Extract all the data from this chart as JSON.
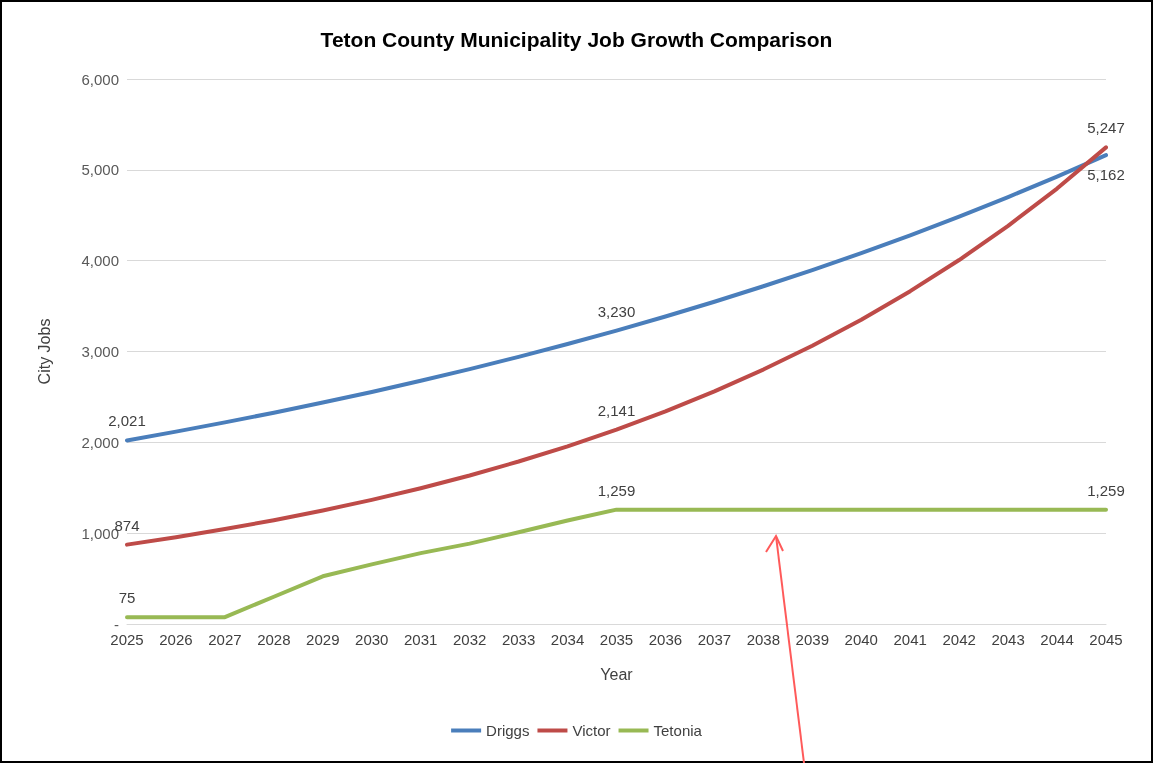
{
  "chart_data": {
    "type": "line",
    "title": "Teton County Municipality Job Growth Comparison",
    "xlabel": "Year",
    "ylabel": "City Jobs",
    "categories": [
      "2025",
      "2026",
      "2027",
      "2028",
      "2029",
      "2030",
      "2031",
      "2032",
      "2033",
      "2034",
      "2035",
      "2036",
      "2037",
      "2038",
      "2039",
      "2040",
      "2041",
      "2042",
      "2043",
      "2044",
      "2045"
    ],
    "series": [
      {
        "name": "Driggs",
        "color": "#4a7ebb",
        "values": [
          2021,
          2118,
          2220,
          2326,
          2438,
          2555,
          2678,
          2806,
          2941,
          3082,
          3230,
          3385,
          3548,
          3718,
          3896,
          4083,
          4279,
          4485,
          4700,
          4925,
          5162
        ],
        "value_labels": [
          "2,021",
          null,
          null,
          null,
          null,
          null,
          null,
          null,
          null,
          null,
          "3,230",
          null,
          null,
          null,
          null,
          null,
          null,
          null,
          null,
          null,
          "5,162"
        ]
      },
      {
        "name": "Victor",
        "color": "#be4b48",
        "values": [
          874,
          956,
          1045,
          1143,
          1250,
          1367,
          1495,
          1635,
          1789,
          1956,
          2141,
          2341,
          2561,
          2801,
          3063,
          3350,
          3664,
          4007,
          4383,
          4794,
          5247
        ],
        "value_labels": [
          "874",
          null,
          null,
          null,
          null,
          null,
          null,
          null,
          null,
          null,
          "2,141",
          null,
          null,
          null,
          null,
          null,
          null,
          null,
          null,
          null,
          "5,247"
        ]
      },
      {
        "name": "Tetonia",
        "color": "#98b954",
        "values": [
          75,
          75,
          75,
          300,
          525,
          656,
          780,
          885,
          1010,
          1140,
          1259,
          1259,
          1259,
          1259,
          1259,
          1259,
          1259,
          1259,
          1259,
          1259,
          1259
        ],
        "value_labels": [
          "75",
          null,
          null,
          null,
          null,
          null,
          null,
          null,
          null,
          null,
          "1,259",
          null,
          null,
          null,
          null,
          null,
          null,
          null,
          null,
          null,
          "1,259"
        ]
      }
    ],
    "ylim": [
      0,
      6000
    ],
    "yticks": [
      {
        "value": 0,
        "label": "-"
      },
      {
        "value": 1000,
        "label": "1,000"
      },
      {
        "value": 2000,
        "label": "2,000"
      },
      {
        "value": 3000,
        "label": "3,000"
      },
      {
        "value": 4000,
        "label": "4,000"
      },
      {
        "value": 5000,
        "label": "5,000"
      },
      {
        "value": 6000,
        "label": "6,000"
      }
    ],
    "grid": "y",
    "legend": "bottom",
    "marker": "none",
    "line_style": "solid"
  }
}
